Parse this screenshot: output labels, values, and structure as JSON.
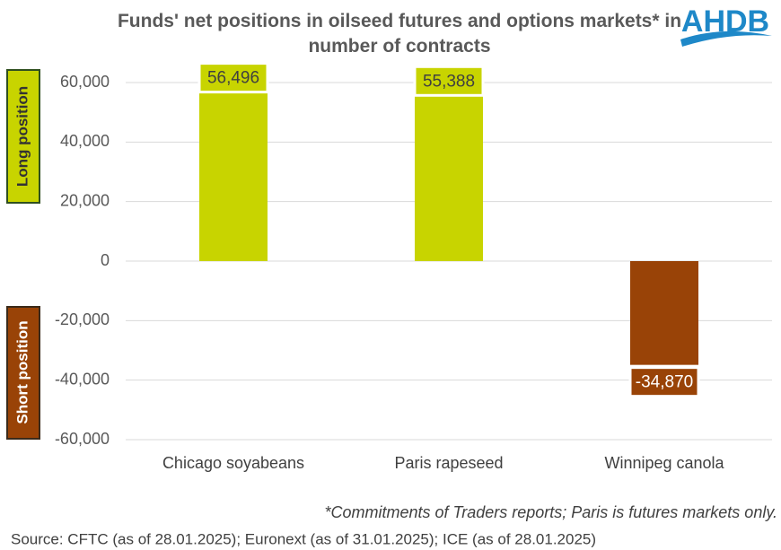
{
  "chart_data": {
    "type": "bar",
    "title": "Funds' net positions in oilseed futures and options markets* in number of contracts",
    "logo": "AHDB",
    "long_label": "Long position",
    "short_label": "Short position",
    "categories": [
      "Chicago soyabeans",
      "Paris rapeseed",
      "Winnipeg canola"
    ],
    "values": [
      56496,
      55388,
      -34870
    ],
    "value_labels": [
      "56,496",
      "55,388",
      "-34,870"
    ],
    "colors": [
      "#c8d400",
      "#c8d400",
      "#994307"
    ],
    "ylim": [
      -60000,
      60000
    ],
    "yticks": [
      {
        "value": -60000,
        "label": "-60,000"
      },
      {
        "value": -40000,
        "label": "-40,000"
      },
      {
        "value": -20000,
        "label": "-20,000"
      },
      0,
      {
        "value": 20000,
        "label": "20,000"
      },
      {
        "value": 40000,
        "label": "40,000"
      },
      {
        "value": 60000,
        "label": "60,000"
      }
    ],
    "grid": true,
    "footnote": "*Commitments of Traders reports; Paris is futures markets only.",
    "source": "Source: CFTC (as of 28.01.2025); Euronext (as of 31.01.2025); ICE (as of 28.01.2025)"
  }
}
